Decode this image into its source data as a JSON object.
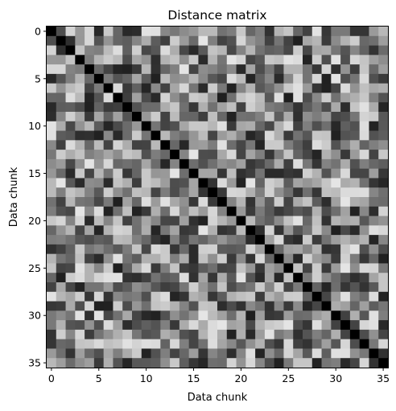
{
  "chart_data": {
    "type": "heatmap",
    "title": "Distance matrix",
    "xlabel": "Data chunk",
    "ylabel": "Data chunk",
    "n": 36,
    "colormap": "gray",
    "xlim": [
      0,
      36
    ],
    "ylim": [
      36,
      0
    ],
    "x_ticks": [
      0,
      5,
      10,
      15,
      20,
      25,
      30,
      35
    ],
    "y_ticks": [
      0,
      5,
      10,
      15,
      20,
      25,
      30,
      35
    ],
    "diagonal_value": 0,
    "seed": 7,
    "grid": false,
    "legend": "none"
  }
}
